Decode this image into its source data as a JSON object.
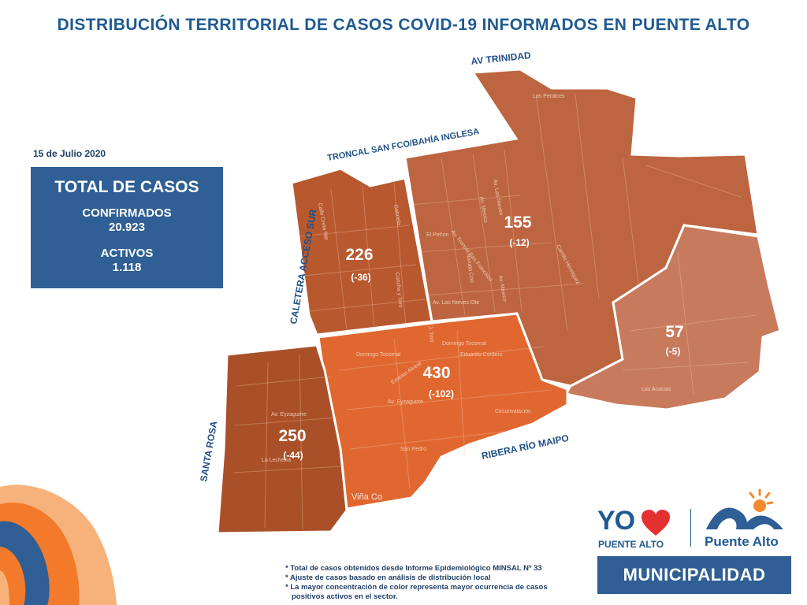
{
  "title": "DISTRIBUCIÓN TERRITORIAL DE CASOS COVID-19 INFORMADOS EN PUENTE ALTO",
  "date": "15 de Julio 2020",
  "totals": {
    "heading": "TOTAL DE CASOS",
    "confirmed_label": "CONFIRMADOS",
    "confirmed_value": "20.923",
    "active_label": "ACTIVOS",
    "active_value": "1.118"
  },
  "map": {
    "border_labels": {
      "av_trinidad": "AV TRINIDAD",
      "troncal": "TRONCAL SAN FCO/BAHÍA INGLESA",
      "caletera": "CALETERA ACCESO SUR",
      "santa_rosa": "SANTA ROSA",
      "ribera": "RIBERA RÍO MAIPO"
    },
    "zones": [
      {
        "id": "nw",
        "count": "226",
        "delta": "(-36)",
        "color": "#b8582e"
      },
      {
        "id": "ne",
        "count": "155",
        "delta": "(-12)",
        "color": "#bd6540"
      },
      {
        "id": "e",
        "count": "57",
        "delta": "(-5)",
        "color": "#c87a5d"
      },
      {
        "id": "c",
        "count": "430",
        "delta": "(-102)",
        "color": "#e06830"
      },
      {
        "id": "sw",
        "count": "250",
        "delta": "(-44)",
        "color": "#aa5028"
      }
    ],
    "streets": {
      "s1": "Las Perdices",
      "s2": "El Peñon",
      "s3": "Av. Troncal San Francisco",
      "s4": "Av. Las Nieves",
      "s5": "Av. Mexico",
      "s6": "Camilo Henriquez",
      "s7": "Av. Las Nieves Ote",
      "s8": "Domingo Tocornal",
      "s9": "Domingo Tocornal",
      "s10": "Eduardo Cordero",
      "s11": "Ernesto Alvear",
      "s12": "Av. Eyzaguirre",
      "s13": "Circunvalación",
      "s14": "San Pedro",
      "s15": "Av. Eyzaguirre",
      "s16": "Viña Co",
      "s17": "Calle Creta Nte",
      "s18": "Gabriela",
      "s19": "Concha y Toro",
      "s20": "Nonato Coo",
      "s21": "Av. Mexico",
      "s22": "J. Toro",
      "s23": "Las Acacias",
      "s24": "La Lechería"
    }
  },
  "notes": [
    "* Total de casos obtenidos desde Informe Epidemiológico MINSAL Nº 33",
    "* Ajuste de casos basado en análisis de distribución local",
    "* La mayor concentración de color representa mayor ocurrencia de casos",
    "positivos activos en el sector."
  ],
  "logos": {
    "yo": "YO",
    "yo_sub": "PUENTE ALTO",
    "pa": "Puente Alto",
    "municipalidad": "MUNICIPALIDAD"
  },
  "colors": {
    "brand_blue": "#2f5f94",
    "title_blue": "#1f5a92",
    "heart_red": "#e4312f",
    "sun_orange": "#f08a2c",
    "wave_orange": "#f27a2a",
    "wave_blue": "#2f5f94"
  }
}
